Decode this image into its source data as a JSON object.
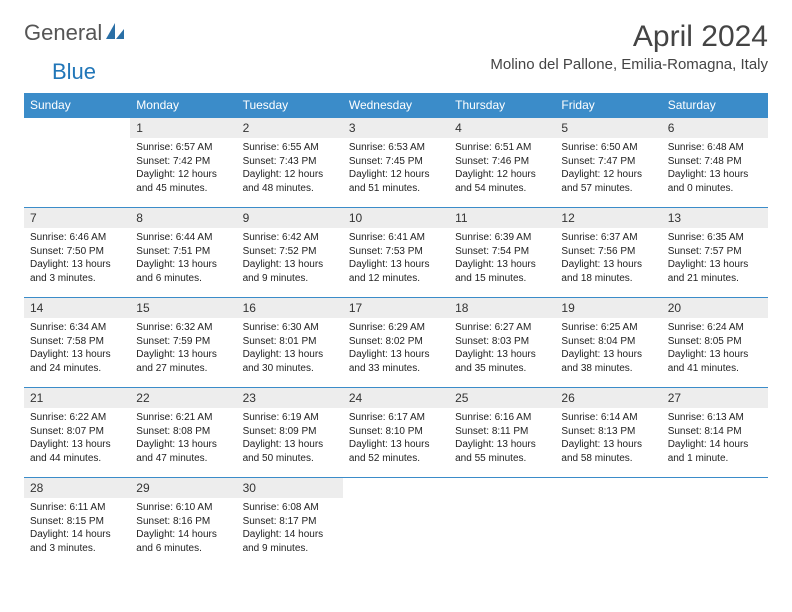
{
  "brand": {
    "text1": "General",
    "text2": "Blue"
  },
  "title": "April 2024",
  "location": "Molino del Pallone, Emilia-Romagna, Italy",
  "colors": {
    "header_bg": "#3b8cc9",
    "header_fg": "#ffffff",
    "daynum_bg": "#ededed",
    "border": "#3b8cc9",
    "body_text": "#222222",
    "title_text": "#444444",
    "logo_gray": "#555555",
    "logo_blue": "#2176b8"
  },
  "weekdays": [
    "Sunday",
    "Monday",
    "Tuesday",
    "Wednesday",
    "Thursday",
    "Friday",
    "Saturday"
  ],
  "weeks": [
    [
      null,
      {
        "n": "1",
        "sr": "6:57 AM",
        "ss": "7:42 PM",
        "dl": "12 hours and 45 minutes."
      },
      {
        "n": "2",
        "sr": "6:55 AM",
        "ss": "7:43 PM",
        "dl": "12 hours and 48 minutes."
      },
      {
        "n": "3",
        "sr": "6:53 AM",
        "ss": "7:45 PM",
        "dl": "12 hours and 51 minutes."
      },
      {
        "n": "4",
        "sr": "6:51 AM",
        "ss": "7:46 PM",
        "dl": "12 hours and 54 minutes."
      },
      {
        "n": "5",
        "sr": "6:50 AM",
        "ss": "7:47 PM",
        "dl": "12 hours and 57 minutes."
      },
      {
        "n": "6",
        "sr": "6:48 AM",
        "ss": "7:48 PM",
        "dl": "13 hours and 0 minutes."
      }
    ],
    [
      {
        "n": "7",
        "sr": "6:46 AM",
        "ss": "7:50 PM",
        "dl": "13 hours and 3 minutes."
      },
      {
        "n": "8",
        "sr": "6:44 AM",
        "ss": "7:51 PM",
        "dl": "13 hours and 6 minutes."
      },
      {
        "n": "9",
        "sr": "6:42 AM",
        "ss": "7:52 PM",
        "dl": "13 hours and 9 minutes."
      },
      {
        "n": "10",
        "sr": "6:41 AM",
        "ss": "7:53 PM",
        "dl": "13 hours and 12 minutes."
      },
      {
        "n": "11",
        "sr": "6:39 AM",
        "ss": "7:54 PM",
        "dl": "13 hours and 15 minutes."
      },
      {
        "n": "12",
        "sr": "6:37 AM",
        "ss": "7:56 PM",
        "dl": "13 hours and 18 minutes."
      },
      {
        "n": "13",
        "sr": "6:35 AM",
        "ss": "7:57 PM",
        "dl": "13 hours and 21 minutes."
      }
    ],
    [
      {
        "n": "14",
        "sr": "6:34 AM",
        "ss": "7:58 PM",
        "dl": "13 hours and 24 minutes."
      },
      {
        "n": "15",
        "sr": "6:32 AM",
        "ss": "7:59 PM",
        "dl": "13 hours and 27 minutes."
      },
      {
        "n": "16",
        "sr": "6:30 AM",
        "ss": "8:01 PM",
        "dl": "13 hours and 30 minutes."
      },
      {
        "n": "17",
        "sr": "6:29 AM",
        "ss": "8:02 PM",
        "dl": "13 hours and 33 minutes."
      },
      {
        "n": "18",
        "sr": "6:27 AM",
        "ss": "8:03 PM",
        "dl": "13 hours and 35 minutes."
      },
      {
        "n": "19",
        "sr": "6:25 AM",
        "ss": "8:04 PM",
        "dl": "13 hours and 38 minutes."
      },
      {
        "n": "20",
        "sr": "6:24 AM",
        "ss": "8:05 PM",
        "dl": "13 hours and 41 minutes."
      }
    ],
    [
      {
        "n": "21",
        "sr": "6:22 AM",
        "ss": "8:07 PM",
        "dl": "13 hours and 44 minutes."
      },
      {
        "n": "22",
        "sr": "6:21 AM",
        "ss": "8:08 PM",
        "dl": "13 hours and 47 minutes."
      },
      {
        "n": "23",
        "sr": "6:19 AM",
        "ss": "8:09 PM",
        "dl": "13 hours and 50 minutes."
      },
      {
        "n": "24",
        "sr": "6:17 AM",
        "ss": "8:10 PM",
        "dl": "13 hours and 52 minutes."
      },
      {
        "n": "25",
        "sr": "6:16 AM",
        "ss": "8:11 PM",
        "dl": "13 hours and 55 minutes."
      },
      {
        "n": "26",
        "sr": "6:14 AM",
        "ss": "8:13 PM",
        "dl": "13 hours and 58 minutes."
      },
      {
        "n": "27",
        "sr": "6:13 AM",
        "ss": "8:14 PM",
        "dl": "14 hours and 1 minute."
      }
    ],
    [
      {
        "n": "28",
        "sr": "6:11 AM",
        "ss": "8:15 PM",
        "dl": "14 hours and 3 minutes."
      },
      {
        "n": "29",
        "sr": "6:10 AM",
        "ss": "8:16 PM",
        "dl": "14 hours and 6 minutes."
      },
      {
        "n": "30",
        "sr": "6:08 AM",
        "ss": "8:17 PM",
        "dl": "14 hours and 9 minutes."
      },
      null,
      null,
      null,
      null
    ]
  ],
  "labels": {
    "sunrise": "Sunrise:",
    "sunset": "Sunset:",
    "daylight": "Daylight:"
  }
}
